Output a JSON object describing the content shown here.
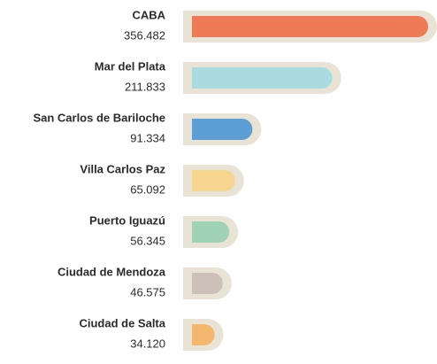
{
  "chart_data": {
    "type": "hbar",
    "categories": [
      "CABA",
      "Mar del Plata",
      "San Carlos de Bariloche",
      "Villa Carlos Paz",
      "Puerto Iguazú",
      "Ciudad de Mendoza",
      "Ciudad de Salta"
    ],
    "values": [
      356482,
      211833,
      91334,
      65092,
      56345,
      46575,
      34120
    ],
    "value_labels": [
      "356.482",
      "211.833",
      "91.334",
      "65.092",
      "56.345",
      "46.575",
      "34.120"
    ],
    "colors": [
      "#ee7a56",
      "#a9dbe0",
      "#5b9fd6",
      "#f5d58f",
      "#a0d3b6",
      "#ccc0b8",
      "#f3b76d"
    ]
  }
}
